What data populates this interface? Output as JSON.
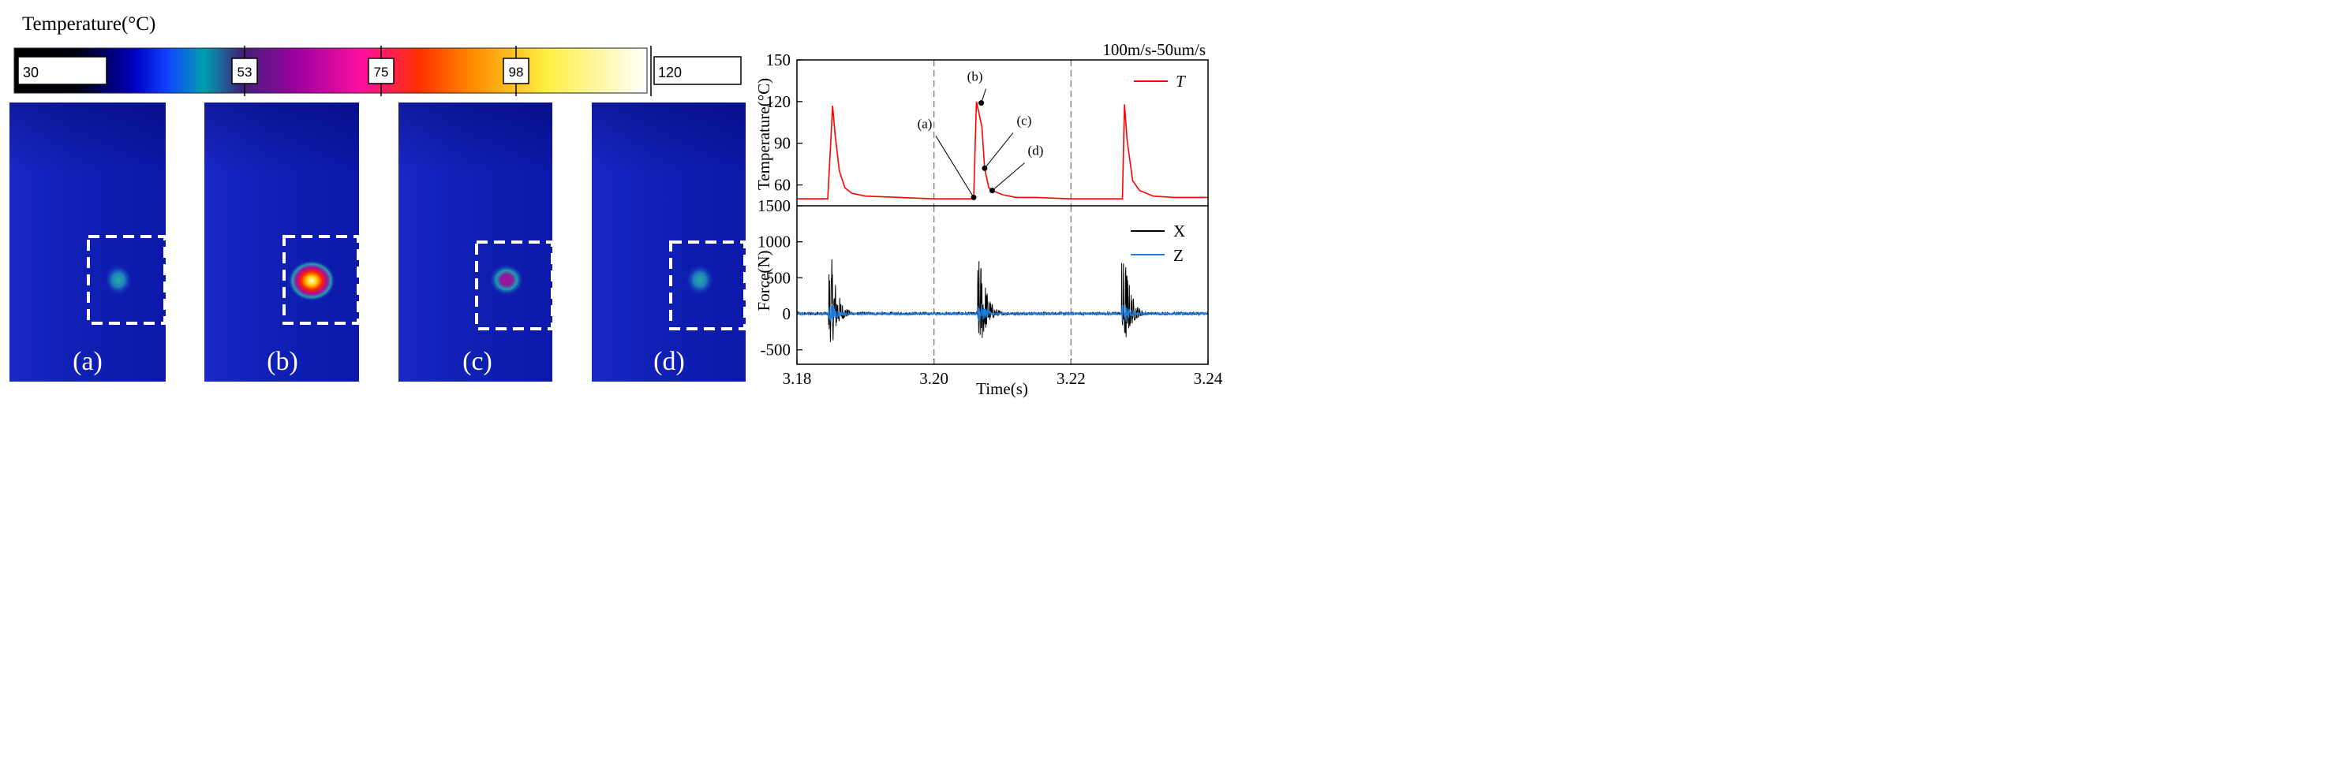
{
  "colorbar": {
    "title": "Temperature(°C)",
    "min_label": "30",
    "tick_labels": [
      "53",
      "75",
      "98"
    ],
    "max_label": "120"
  },
  "thermal_images": [
    {
      "label": "(a)",
      "hotspot": "cyan"
    },
    {
      "label": "(b)",
      "hotspot": "white-hot"
    },
    {
      "label": "(c)",
      "hotspot": "magenta"
    },
    {
      "label": "(d)",
      "hotspot": "cyan"
    }
  ],
  "chart_data": [
    {
      "type": "line",
      "title": "100m/s-50um/s",
      "ylabel": "Temperature(°C)",
      "xlim": [
        3.18,
        3.24
      ],
      "ylim": [
        45,
        150
      ],
      "yticks": [
        60,
        90,
        120,
        150
      ],
      "reference_lines_x": [
        3.2,
        3.22
      ],
      "legend_position": "top-right",
      "series": [
        {
          "name": "T",
          "color": "#ff0000",
          "x": [
            3.18,
            3.1845,
            3.1852,
            3.1856,
            3.1862,
            3.187,
            3.188,
            3.19,
            3.195,
            3.2,
            3.2058,
            3.2062,
            3.207,
            3.2074,
            3.208,
            3.209,
            3.21,
            3.212,
            3.215,
            3.22,
            3.2275,
            3.2278,
            3.2282,
            3.229,
            3.23,
            3.232,
            3.235,
            3.24
          ],
          "y": [
            50,
            50,
            117,
            95,
            70,
            58,
            54,
            52,
            51,
            50,
            50,
            120,
            102,
            72,
            58,
            55,
            53,
            51,
            51,
            50,
            50,
            118,
            92,
            63,
            56,
            52,
            51,
            51
          ]
        }
      ],
      "annotations": [
        {
          "label": "(a)",
          "x": 3.2058,
          "y": 51
        },
        {
          "label": "(b)",
          "x": 3.2069,
          "y": 119
        },
        {
          "label": "(c)",
          "x": 3.2074,
          "y": 72
        },
        {
          "label": "(d)",
          "x": 3.2085,
          "y": 56
        }
      ]
    },
    {
      "type": "line",
      "ylabel": "Force(N)",
      "xlabel": "Time(s)",
      "xlim": [
        3.18,
        3.24
      ],
      "ylim": [
        -700,
        1500
      ],
      "yticks": [
        -500,
        0,
        500,
        1000,
        1500
      ],
      "xticks": [
        3.18,
        3.2,
        3.22,
        3.24
      ],
      "xtick_labels": [
        "3.18",
        "3.20",
        "3.22",
        "3.24"
      ],
      "reference_lines_x": [
        3.2,
        3.22
      ],
      "legend_position": "top-right",
      "bursts_x": [
        3.1848,
        3.2066,
        3.2276
      ],
      "series": [
        {
          "name": "X",
          "color": "#000000",
          "peak": 760,
          "trough": -400
        },
        {
          "name": "Z",
          "color": "#1e7fe0",
          "peak": 150,
          "trough": -120
        }
      ]
    }
  ]
}
